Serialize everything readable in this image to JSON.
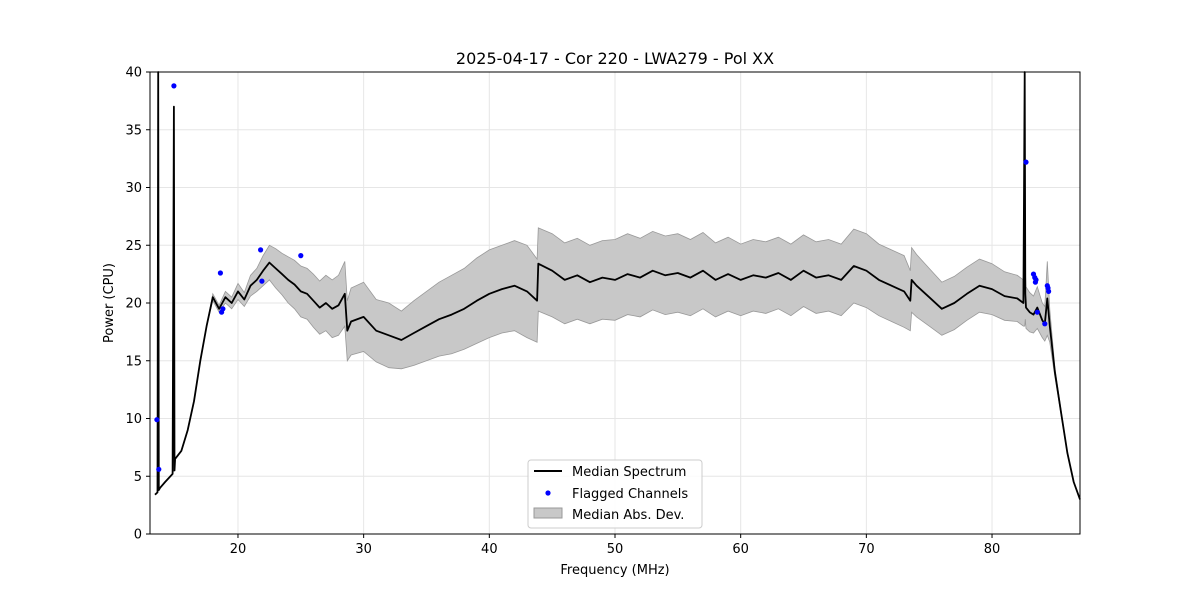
{
  "chart_data": {
    "type": "line",
    "title": "2025-04-17 - Cor 220 - LWA279 - Pol XX",
    "xlabel": "Frequency (MHz)",
    "ylabel": "Power (CPU)",
    "xlim": [
      13.0,
      87.0
    ],
    "ylim": [
      0,
      40
    ],
    "xticks": [
      20,
      30,
      40,
      50,
      60,
      70,
      80
    ],
    "yticks": [
      0,
      5,
      10,
      15,
      20,
      25,
      30,
      35,
      40
    ],
    "grid": true,
    "legend": {
      "placement": "lower-center",
      "entries": [
        "Median Spectrum",
        "Flagged Channels",
        "Median Abs. Dev."
      ]
    },
    "colors": {
      "median": "#000000",
      "flagged": "#0000ff",
      "mad_fill": "#c8c8c8",
      "mad_edge": "#999999"
    },
    "series": [
      {
        "name": "Median Spectrum",
        "x": [
          13.4,
          13.6,
          13.65,
          13.7,
          13.8,
          14.2,
          14.8,
          14.9,
          14.95,
          15.0,
          15.5,
          16.0,
          16.5,
          17.0,
          17.5,
          18.0,
          18.5,
          19.0,
          19.5,
          20.0,
          20.5,
          21.0,
          21.5,
          22.0,
          22.5,
          23.0,
          23.5,
          24.0,
          24.5,
          25.0,
          25.5,
          26.0,
          26.5,
          27.0,
          27.5,
          28.0,
          28.5,
          28.7,
          29.0,
          30.0,
          31.0,
          32.0,
          33.0,
          34.0,
          35.0,
          36.0,
          37.0,
          38.0,
          39.0,
          40.0,
          41.0,
          42.0,
          43.0,
          43.8,
          43.9,
          45.0,
          46.0,
          47.0,
          48.0,
          49.0,
          50.0,
          51.0,
          52.0,
          53.0,
          54.0,
          55.0,
          56.0,
          57.0,
          58.0,
          59.0,
          60.0,
          61.0,
          62.0,
          63.0,
          64.0,
          65.0,
          66.0,
          67.0,
          68.0,
          69.0,
          70.0,
          71.0,
          72.0,
          73.0,
          73.5,
          73.6,
          74.0,
          75.0,
          76.0,
          77.0,
          78.0,
          79.0,
          80.0,
          81.0,
          82.0,
          82.5,
          82.6,
          82.65,
          82.7,
          83.0,
          83.3,
          83.6,
          84.0,
          84.2,
          84.4,
          84.6,
          85.0,
          85.5,
          86.0,
          86.5,
          87.0
        ],
        "y": [
          3.4,
          3.6,
          40,
          3.8,
          4.0,
          4.5,
          5.2,
          37,
          5.5,
          6.5,
          7.2,
          9.0,
          11.5,
          15.0,
          18.0,
          20.5,
          19.5,
          20.5,
          20.0,
          21.0,
          20.3,
          21.5,
          22.0,
          22.8,
          23.5,
          23.0,
          22.5,
          22.0,
          21.6,
          21.0,
          20.8,
          20.2,
          19.6,
          20.0,
          19.5,
          19.8,
          20.8,
          17.6,
          18.4,
          18.8,
          17.6,
          17.2,
          16.8,
          17.4,
          18.0,
          18.6,
          19.0,
          19.5,
          20.2,
          20.8,
          21.2,
          21.5,
          21.0,
          20.2,
          23.4,
          22.8,
          22.0,
          22.4,
          21.8,
          22.2,
          22.0,
          22.5,
          22.2,
          22.8,
          22.4,
          22.6,
          22.2,
          22.8,
          22.0,
          22.5,
          22.0,
          22.4,
          22.2,
          22.6,
          22.0,
          22.8,
          22.2,
          22.4,
          22.0,
          23.2,
          22.8,
          22.0,
          21.5,
          21.0,
          20.2,
          22.0,
          21.5,
          20.5,
          19.5,
          20.0,
          20.8,
          21.5,
          21.2,
          20.6,
          20.4,
          20.0,
          40,
          20.8,
          19.6,
          19.2,
          19.0,
          19.6,
          18.5,
          18.2,
          20.4,
          18.0,
          14.0,
          10.5,
          7.0,
          4.5,
          3.0
        ],
        "mad_lower": [
          3.4,
          3.6,
          3.8,
          3.8,
          4.0,
          4.5,
          5.2,
          5.5,
          5.5,
          6.5,
          7.2,
          9.0,
          11.5,
          15.0,
          18.0,
          20.2,
          19.2,
          20.0,
          19.5,
          20.3,
          19.7,
          20.6,
          21.0,
          21.5,
          22.0,
          21.3,
          20.7,
          20.0,
          19.5,
          18.8,
          18.6,
          17.9,
          17.3,
          17.6,
          17.0,
          17.2,
          18.0,
          15.0,
          15.5,
          15.8,
          14.9,
          14.4,
          14.3,
          14.6,
          15.0,
          15.4,
          15.6,
          16.0,
          16.5,
          17.0,
          17.4,
          17.6,
          17.0,
          16.6,
          19.3,
          18.8,
          18.2,
          18.6,
          18.2,
          18.6,
          18.5,
          19.0,
          18.8,
          19.4,
          19.0,
          19.2,
          18.9,
          19.5,
          18.8,
          19.3,
          18.9,
          19.3,
          19.1,
          19.5,
          18.9,
          19.7,
          19.1,
          19.3,
          18.9,
          20.0,
          19.6,
          18.9,
          18.4,
          17.9,
          17.6,
          19.2,
          18.8,
          18.0,
          17.2,
          17.7,
          18.5,
          19.2,
          19.0,
          18.5,
          18.4,
          18.0,
          18.0,
          18.6,
          17.8,
          17.5,
          17.4,
          17.8,
          17.0,
          16.7,
          17.2,
          16.6,
          13.6,
          10.3,
          6.9,
          4.5,
          3.0
        ],
        "mad_upper": [
          3.4,
          3.6,
          3.8,
          3.8,
          4.0,
          4.5,
          5.2,
          5.5,
          5.5,
          6.5,
          7.2,
          9.0,
          11.5,
          15.0,
          18.0,
          20.8,
          19.8,
          21.0,
          20.5,
          21.7,
          20.9,
          22.4,
          23.0,
          24.1,
          25.0,
          24.7,
          24.3,
          24.0,
          23.7,
          23.2,
          23.0,
          22.5,
          21.9,
          22.4,
          22.0,
          22.4,
          23.6,
          20.2,
          21.3,
          21.8,
          20.3,
          20.0,
          19.3,
          20.2,
          21.0,
          21.8,
          22.4,
          23.0,
          23.9,
          24.6,
          25.0,
          25.4,
          25.0,
          23.8,
          26.5,
          26.0,
          25.2,
          25.6,
          25.0,
          25.4,
          25.5,
          26.0,
          25.6,
          26.2,
          25.8,
          26.0,
          25.5,
          26.1,
          25.2,
          25.7,
          25.1,
          25.5,
          25.3,
          25.7,
          25.1,
          25.9,
          25.3,
          25.5,
          25.1,
          26.4,
          26.0,
          25.1,
          24.6,
          24.1,
          22.8,
          24.8,
          24.2,
          23.0,
          21.8,
          22.3,
          23.1,
          23.8,
          23.4,
          22.7,
          22.4,
          22.0,
          22.0,
          23.0,
          21.4,
          20.9,
          20.6,
          21.4,
          20.0,
          19.7,
          23.6,
          19.4,
          14.4,
          10.7,
          7.1,
          4.5,
          3.0
        ]
      },
      {
        "name": "Flagged Channels",
        "x": [
          13.55,
          13.7,
          14.9,
          18.6,
          18.7,
          18.8,
          21.8,
          21.9,
          25.0,
          82.7,
          83.3,
          83.4,
          83.5,
          83.6,
          83.45,
          84.2,
          84.4,
          84.5,
          84.45
        ],
        "y": [
          9.9,
          5.6,
          38.8,
          22.6,
          19.2,
          19.5,
          24.6,
          21.9,
          24.1,
          32.2,
          22.5,
          22.2,
          22.0,
          19.2,
          21.8,
          18.2,
          21.5,
          21.0,
          21.3
        ]
      }
    ]
  }
}
